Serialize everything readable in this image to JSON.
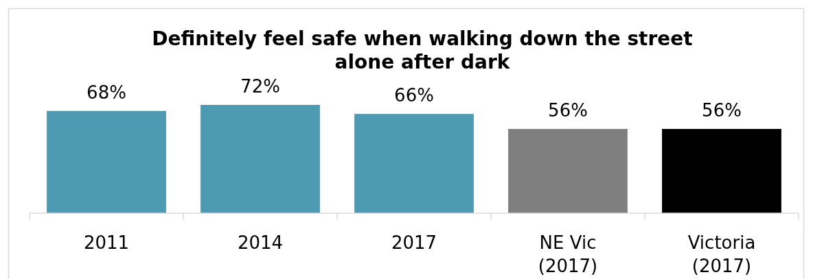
{
  "chart_data": {
    "type": "bar",
    "title": "Definitely feel safe when walking down the street alone after dark",
    "categories": [
      "2011",
      "2014",
      "2017",
      "NE Vic (2017)",
      "Victoria (2017)"
    ],
    "values": [
      68,
      72,
      66,
      56,
      56
    ],
    "colors": [
      "#4e9ab2",
      "#4e9ab2",
      "#4e9ab2",
      "#7f7f7f",
      "#000000"
    ],
    "value_labels": [
      "68%",
      "72%",
      "66%",
      "56%",
      "56%"
    ]
  }
}
